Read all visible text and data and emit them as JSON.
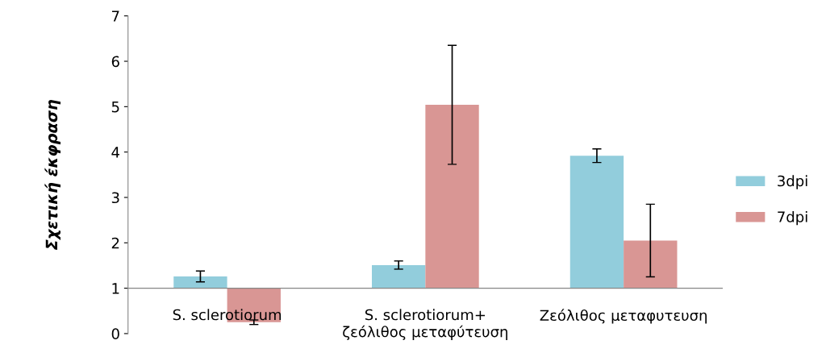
{
  "chart_data": {
    "type": "bar",
    "ylabel": "Σχετική έκφραση",
    "categories": [
      "S. sclerotiorum",
      "S. sclerotiorum+\nζεόλιθος μεταφύτευση",
      "Ζεόλιθος μεταφυτευση"
    ],
    "series": [
      {
        "name": "3dpi",
        "color": "#92cddc",
        "base": [
          1,
          1,
          1
        ],
        "values": [
          0.26,
          0.51,
          2.92
        ],
        "errors": [
          0.12,
          0.09,
          0.15
        ]
      },
      {
        "name": "7dpi",
        "color": "#d99694",
        "base": [
          1,
          1,
          1
        ],
        "values": [
          -0.75,
          4.04,
          1.05
        ],
        "errors": [
          0.05,
          1.31,
          0.8
        ]
      }
    ],
    "ylim": [
      0,
      7
    ],
    "yticks": [
      0,
      1,
      2,
      3,
      4,
      5,
      6,
      7
    ],
    "grid": false,
    "legend": "right"
  }
}
